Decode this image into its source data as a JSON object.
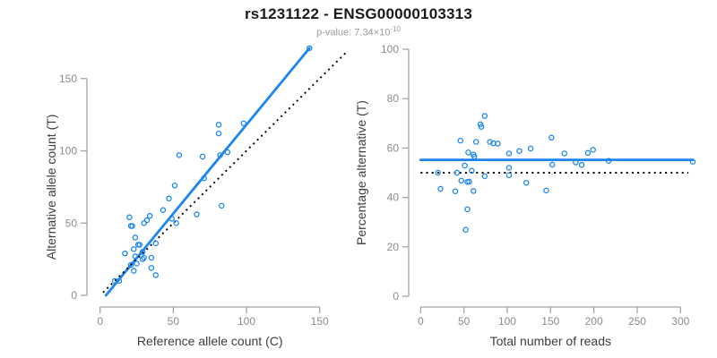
{
  "header": {
    "title": "rs1231122 - ENSG00000103313",
    "subtitle_text": "p-value: 7.34×10",
    "subtitle_exponent": "-10"
  },
  "colors": {
    "accent_blue": "#1c86ee",
    "dotted_line_black": "#000000",
    "axis_line_gray": "#a3a3a3",
    "tick_label_gray": "#8c8c8c",
    "axis_label_dark": "#3d3d3d",
    "title_black": "#1a1a1a",
    "subtitle_gray": "#9b9b9b",
    "background": "#ffffff"
  },
  "chart_data": [
    {
      "type": "scatter",
      "panel": "left",
      "xlabel": "Reference allele count (C)",
      "ylabel": "Alternative allele count (T)",
      "xlim": [
        0,
        150
      ],
      "ylim": [
        0,
        150
      ],
      "xticks": [
        0,
        50,
        100,
        150
      ],
      "yticks": [
        0,
        50,
        100,
        150
      ],
      "grid": false,
      "legend": null,
      "marker": "open-circle",
      "points": [
        [
          13,
          10
        ],
        [
          23,
          17
        ],
        [
          25,
          22
        ],
        [
          29,
          25
        ],
        [
          35,
          26
        ],
        [
          35,
          19
        ],
        [
          38,
          14
        ],
        [
          66,
          56
        ],
        [
          83,
          62
        ],
        [
          20,
          54
        ],
        [
          21,
          48
        ],
        [
          22,
          48
        ],
        [
          17,
          29
        ],
        [
          54,
          97
        ],
        [
          24,
          40
        ],
        [
          30,
          50
        ],
        [
          32,
          52
        ],
        [
          34,
          55
        ],
        [
          43,
          59
        ],
        [
          47,
          67
        ],
        [
          51,
          76
        ],
        [
          70,
          96
        ],
        [
          81,
          112
        ],
        [
          81,
          118
        ],
        [
          23,
          32
        ],
        [
          26,
          35
        ],
        [
          27,
          35
        ],
        [
          24,
          27
        ],
        [
          71,
          81
        ],
        [
          82,
          97
        ],
        [
          87,
          99
        ],
        [
          98,
          119
        ],
        [
          143,
          171
        ],
        [
          10,
          10
        ],
        [
          21,
          21
        ],
        [
          29,
          30
        ],
        [
          38,
          36
        ],
        [
          49,
          53
        ],
        [
          52,
          50
        ],
        [
          30,
          26
        ]
      ],
      "lines": [
        {
          "name": "regression-line",
          "style": "solid",
          "color": "#1c86ee",
          "x1": 4,
          "y1": 0,
          "x2": 143,
          "y2": 171
        },
        {
          "name": "identity-line",
          "style": "dotted",
          "color": "#000000",
          "x1": 2,
          "y1": 2,
          "x2": 168,
          "y2": 168
        }
      ]
    },
    {
      "type": "scatter",
      "panel": "right",
      "xlabel": "Total number of reads",
      "ylabel": "Percentage alternative (T)",
      "xlim": [
        0,
        300
      ],
      "ylim": [
        0,
        100
      ],
      "xticks": [
        0,
        50,
        100,
        150,
        200,
        250,
        300
      ],
      "yticks": [
        0,
        20,
        40,
        60,
        80,
        100
      ],
      "grid": false,
      "legend": null,
      "marker": "open-circle",
      "points": [
        [
          23,
          43.5
        ],
        [
          40,
          42.5
        ],
        [
          47,
          46.8
        ],
        [
          54,
          46.3
        ],
        [
          61,
          42.6
        ],
        [
          54,
          35.2
        ],
        [
          52,
          26.9
        ],
        [
          122,
          45.9
        ],
        [
          145,
          42.8
        ],
        [
          74,
          73.0
        ],
        [
          69,
          69.6
        ],
        [
          70,
          68.6
        ],
        [
          46,
          63.0
        ],
        [
          151,
          64.2
        ],
        [
          64,
          62.5
        ],
        [
          80,
          62.5
        ],
        [
          84,
          61.9
        ],
        [
          89,
          61.8
        ],
        [
          102,
          57.8
        ],
        [
          114,
          58.8
        ],
        [
          127,
          59.8
        ],
        [
          166,
          57.8
        ],
        [
          193,
          58.0
        ],
        [
          199,
          59.3
        ],
        [
          55,
          58.2
        ],
        [
          61,
          57.4
        ],
        [
          62,
          56.5
        ],
        [
          51,
          52.9
        ],
        [
          152,
          53.3
        ],
        [
          179,
          54.2
        ],
        [
          186,
          53.2
        ],
        [
          217,
          54.8
        ],
        [
          314,
          54.5
        ],
        [
          20,
          50.0
        ],
        [
          42,
          50.0
        ],
        [
          59,
          50.8
        ],
        [
          74,
          48.6
        ],
        [
          102,
          52.0
        ],
        [
          102,
          49.0
        ],
        [
          56,
          46.4
        ]
      ],
      "lines": [
        {
          "name": "mean-percentage-line",
          "style": "solid",
          "color": "#1c86ee",
          "x1": 0,
          "y1": 55.2,
          "x2": 314,
          "y2": 55.2
        },
        {
          "name": "fifty-percent-line",
          "style": "dotted",
          "color": "#000000",
          "x1": 0,
          "y1": 50,
          "x2": 309,
          "y2": 50
        }
      ]
    }
  ]
}
